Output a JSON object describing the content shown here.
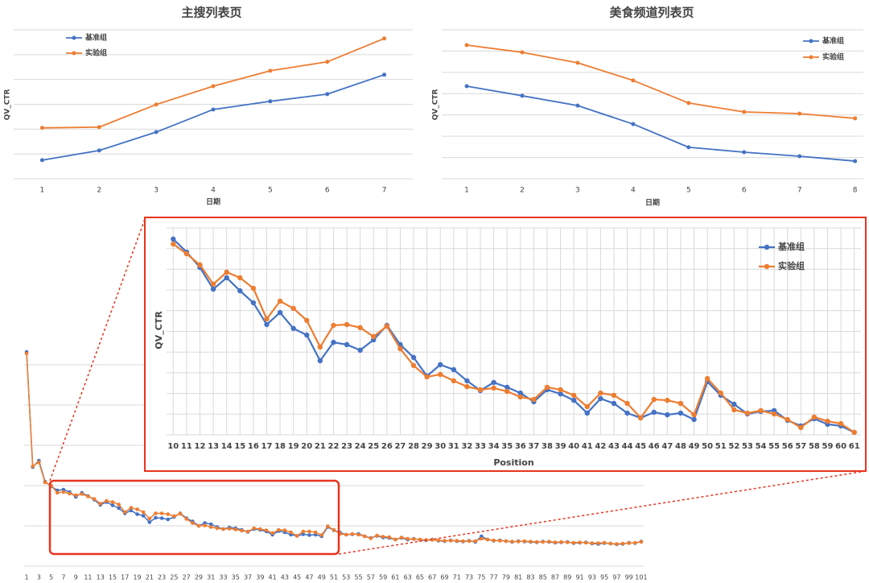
{
  "chart_data": [
    {
      "type": "line",
      "title": "主搜列表页",
      "x_label": "日期",
      "y_label": "QV_CTR",
      "x": [
        1,
        2,
        3,
        4,
        5,
        6,
        7
      ],
      "xlim": [
        0.5,
        7.5
      ],
      "xticks": [
        1,
        2,
        3,
        4,
        5,
        6,
        7
      ],
      "ylim": [
        0,
        6
      ],
      "yticks": [
        0,
        1,
        2,
        3,
        4,
        5,
        6
      ],
      "grid": true,
      "legend": "upper left",
      "series": [
        {
          "name": "基准组",
          "color": "#4472c4",
          "values": [
            0.75,
            1.14,
            1.88,
            2.79,
            3.12,
            3.41,
            4.19
          ]
        },
        {
          "name": "实验组",
          "color": "#ed7d31",
          "values": [
            2.05,
            2.08,
            2.99,
            3.73,
            4.35,
            4.71,
            5.65
          ]
        }
      ]
    },
    {
      "type": "line",
      "title": "美食频道列表页",
      "x_label": "日期",
      "y_label": "QV_CTR",
      "x": [
        1,
        2,
        3,
        4,
        5,
        6,
        7,
        8
      ],
      "xlim": [
        0.55,
        8.15
      ],
      "xticks": [
        1,
        2,
        3,
        4,
        5,
        6,
        7,
        8
      ],
      "ylim": [
        0,
        7
      ],
      "yticks": [
        0,
        1,
        2,
        3,
        4,
        5,
        6,
        7
      ],
      "grid": true,
      "legend": "upper right",
      "series": [
        {
          "name": "基准组",
          "color": "#4472c4",
          "values": [
            4.35,
            3.9,
            3.44,
            2.57,
            1.48,
            1.25,
            1.06,
            0.83
          ]
        },
        {
          "name": "实验组",
          "color": "#ed7d31",
          "values": [
            6.28,
            5.94,
            5.45,
            4.62,
            3.56,
            3.14,
            3.06,
            2.84
          ]
        }
      ]
    },
    {
      "type": "line",
      "x": [
        1,
        2,
        3,
        4,
        5,
        6,
        7,
        8,
        9,
        10,
        11,
        12,
        13,
        14,
        15,
        16,
        17,
        18,
        19,
        20,
        21,
        22,
        23,
        24,
        25,
        26,
        27,
        28,
        29,
        30,
        31,
        32,
        33,
        34,
        35,
        36,
        37,
        38,
        39,
        40,
        41,
        42,
        43,
        44,
        45,
        46,
        47,
        48,
        49,
        50,
        51,
        52,
        53,
        54,
        55,
        56,
        57,
        58,
        59,
        60,
        61,
        62,
        63,
        64,
        65,
        66,
        67,
        68,
        69,
        70,
        71,
        72,
        73,
        74,
        75,
        76,
        77,
        78,
        79,
        80,
        81,
        82,
        83,
        84,
        85,
        86,
        87,
        88,
        89,
        90,
        91,
        92,
        93,
        94,
        95,
        96,
        97,
        98,
        99,
        100,
        101
      ],
      "xlim": [
        0.6,
        101.4
      ],
      "xticks": [
        1,
        3,
        5,
        7,
        9,
        11,
        13,
        15,
        17,
        19,
        21,
        23,
        25,
        27,
        29,
        31,
        33,
        35,
        37,
        39,
        41,
        43,
        45,
        47,
        49,
        51,
        53,
        55,
        57,
        59,
        61,
        63,
        65,
        67,
        69,
        71,
        73,
        75,
        77,
        79,
        81,
        83,
        85,
        87,
        89,
        91,
        93,
        95,
        97,
        99,
        101
      ],
      "ylim": [
        0,
        6
      ],
      "yticks": [
        0,
        1,
        2,
        3,
        4,
        5
      ],
      "grid": true,
      "series": [
        {
          "color": "#4472c4",
          "values": [
            5.32,
            2.46,
            2.62,
            2.1,
            1.98,
            1.88,
            1.9,
            1.84,
            1.72,
            1.82,
            1.74,
            1.65,
            1.52,
            1.59,
            1.51,
            1.44,
            1.31,
            1.38,
            1.29,
            1.25,
            1.09,
            1.2,
            1.19,
            1.16,
            1.22,
            1.31,
            1.19,
            1.11,
            1.0,
            1.07,
            1.04,
            0.97,
            0.92,
            0.96,
            0.94,
            0.9,
            0.85,
            0.92,
            0.9,
            0.86,
            0.78,
            0.87,
            0.84,
            0.78,
            0.75,
            0.79,
            0.77,
            0.78,
            0.74,
            0.97,
            0.89,
            0.83,
            0.78,
            0.79,
            0.8,
            0.74,
            0.7,
            0.75,
            0.71,
            0.7,
            0.66,
            0.7,
            0.66,
            0.68,
            0.65,
            0.64,
            0.66,
            0.63,
            0.62,
            0.64,
            0.62,
            0.61,
            0.63,
            0.6,
            0.74,
            0.66,
            0.63,
            0.64,
            0.62,
            0.6,
            0.62,
            0.61,
            0.6,
            0.59,
            0.61,
            0.6,
            0.58,
            0.59,
            0.6,
            0.57,
            0.58,
            0.59,
            0.56,
            0.55,
            0.57,
            0.56,
            0.54,
            0.55,
            0.58,
            0.57,
            0.61
          ]
        },
        {
          "color": "#ed7d31",
          "values": [
            5.28,
            2.48,
            2.58,
            2.08,
            2.0,
            1.82,
            1.84,
            1.8,
            1.76,
            1.79,
            1.73,
            1.67,
            1.55,
            1.62,
            1.59,
            1.53,
            1.34,
            1.45,
            1.41,
            1.34,
            1.18,
            1.31,
            1.31,
            1.29,
            1.24,
            1.3,
            1.17,
            1.07,
            1.0,
            1.01,
            0.97,
            0.94,
            0.92,
            0.93,
            0.91,
            0.88,
            0.86,
            0.94,
            0.92,
            0.89,
            0.82,
            0.9,
            0.89,
            0.84,
            0.75,
            0.86,
            0.86,
            0.84,
            0.77,
            0.99,
            0.9,
            0.8,
            0.78,
            0.8,
            0.78,
            0.74,
            0.69,
            0.76,
            0.73,
            0.72,
            0.66,
            0.71,
            0.68,
            0.67,
            0.66,
            0.65,
            0.65,
            0.64,
            0.63,
            0.63,
            0.63,
            0.62,
            0.62,
            0.62,
            0.68,
            0.66,
            0.64,
            0.63,
            0.62,
            0.61,
            0.61,
            0.62,
            0.61,
            0.6,
            0.6,
            0.61,
            0.59,
            0.6,
            0.59,
            0.58,
            0.59,
            0.58,
            0.57,
            0.57,
            0.58,
            0.56,
            0.55,
            0.56,
            0.57,
            0.58,
            0.6
          ]
        }
      ]
    },
    {
      "type": "line",
      "x_label": "Position",
      "y_label": "QV_CTR",
      "x": [
        10,
        11,
        12,
        13,
        14,
        15,
        16,
        17,
        18,
        19,
        20,
        21,
        22,
        23,
        24,
        25,
        26,
        27,
        28,
        29,
        30,
        31,
        32,
        33,
        34,
        35,
        36,
        37,
        38,
        39,
        40,
        41,
        42,
        43,
        44,
        45,
        46,
        47,
        48,
        49,
        50,
        51,
        52,
        53,
        54,
        55,
        56,
        57,
        58,
        59,
        60,
        61
      ],
      "xlim": [
        9.5,
        61.5
      ],
      "xticks": [
        10,
        11,
        12,
        13,
        14,
        15,
        16,
        17,
        18,
        19,
        20,
        21,
        22,
        23,
        24,
        25,
        26,
        27,
        28,
        29,
        30,
        31,
        32,
        33,
        34,
        35,
        36,
        37,
        38,
        39,
        40,
        41,
        42,
        43,
        44,
        45,
        46,
        47,
        48,
        49,
        50,
        51,
        52,
        53,
        54,
        55,
        56,
        57,
        58,
        59,
        60,
        61
      ],
      "ylim": [
        0,
        10
      ],
      "yticks": [
        0,
        1,
        2,
        3,
        4,
        5,
        6,
        7,
        8,
        9,
        10
      ],
      "grid": true,
      "xgrid": true,
      "legend": "upper right",
      "series": [
        {
          "name": "基准组",
          "color": "#4472c4",
          "values": [
            9.46,
            8.83,
            8.09,
            7.04,
            7.59,
            6.96,
            6.38,
            5.33,
            5.91,
            5.14,
            4.82,
            3.58,
            4.47,
            4.36,
            4.09,
            4.59,
            5.29,
            4.36,
            3.74,
            2.84,
            3.39,
            3.15,
            2.61,
            2.14,
            2.53,
            2.3,
            2.02,
            1.6,
            2.18,
            1.98,
            1.67,
            1.05,
            1.75,
            1.52,
            1.05,
            0.82,
            1.09,
            0.97,
            1.05,
            0.74,
            2.57,
            1.91,
            1.48,
            1.01,
            1.13,
            1.17,
            0.7,
            0.43,
            0.78,
            0.51,
            0.43,
            0.12
          ]
        },
        {
          "name": "实验组",
          "color": "#ed7d31",
          "values": [
            9.22,
            8.75,
            8.21,
            7.28,
            7.86,
            7.59,
            7.08,
            5.6,
            6.46,
            6.11,
            5.53,
            4.24,
            5.29,
            5.33,
            5.18,
            4.75,
            5.25,
            4.16,
            3.35,
            2.8,
            2.92,
            2.61,
            2.33,
            2.18,
            2.26,
            2.1,
            1.83,
            1.71,
            2.3,
            2.18,
            1.91,
            1.36,
            2.02,
            1.91,
            1.52,
            0.82,
            1.71,
            1.67,
            1.52,
            0.97,
            2.72,
            2.02,
            1.21,
            1.05,
            1.17,
            1.01,
            0.74,
            0.35,
            0.86,
            0.66,
            0.54,
            0.12
          ]
        }
      ]
    }
  ]
}
